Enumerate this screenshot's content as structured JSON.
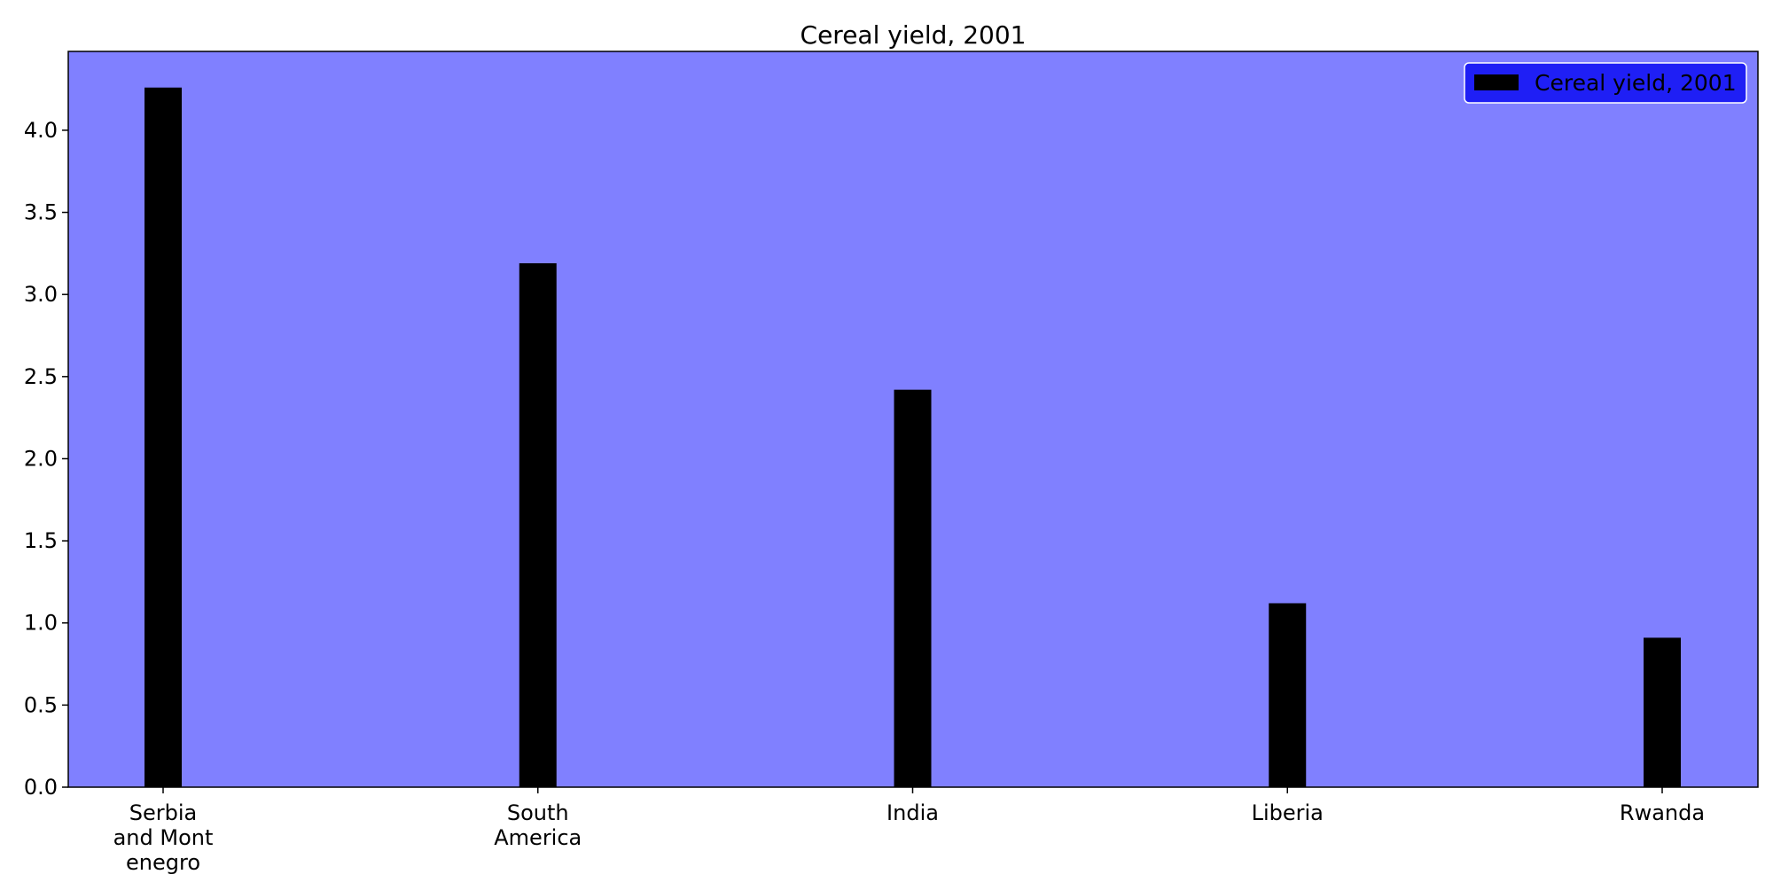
{
  "chart_data": {
    "type": "bar",
    "title": "Cereal yield, 2001",
    "xlabel": "",
    "ylabel": "",
    "categories": [
      [
        "Serbia",
        "and Mont",
        "enegro"
      ],
      [
        "South",
        "America"
      ],
      [
        "India"
      ],
      [
        "Liberia"
      ],
      [
        "Rwanda"
      ]
    ],
    "series": [
      {
        "name": "Cereal yield, 2001",
        "values": [
          4.26,
          3.19,
          2.42,
          1.12,
          0.91
        ]
      }
    ],
    "ylim": [
      0,
      4.48
    ],
    "yticks": [
      "0.0",
      "0.5",
      "1.0",
      "1.5",
      "2.0",
      "2.5",
      "3.0",
      "3.5",
      "4.0"
    ],
    "ytick_values": [
      0,
      0.5,
      1.0,
      1.5,
      2.0,
      2.5,
      3.0,
      3.5,
      4.0
    ],
    "grid": false,
    "legend_position": "top-right",
    "colors": {
      "plot_background": "#8080ff",
      "bar": "#000000",
      "legend_background": "#1f1ff5",
      "legend_border": "#ffffff",
      "axis": "#000000",
      "text": "#000000"
    }
  }
}
